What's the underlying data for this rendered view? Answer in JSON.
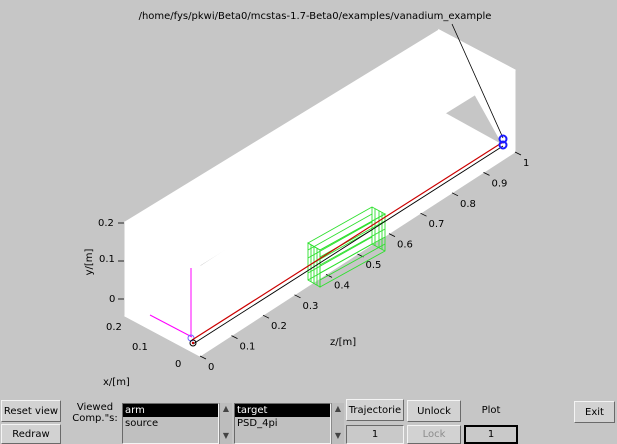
{
  "window": {
    "path_title": "/home/fys/pkwi/Beta0/mcstas-1.7-Beta0/examples/vanadium_example"
  },
  "axes": {
    "y_label": "y/[m]",
    "x_label": "x/[m]",
    "z_label": "z/[m]",
    "y_ticks": [
      "0.2",
      "0.1",
      "0"
    ],
    "x_ticks": [
      "0.2",
      "0.1",
      "0"
    ],
    "z_ticks": [
      "0",
      "0.1",
      "0.2",
      "0.3",
      "0.4",
      "0.5",
      "0.6",
      "0.7",
      "0.8",
      "0.9",
      "1"
    ]
  },
  "colors": {
    "box_face": "#ffffff",
    "background": "#c6c6c6",
    "sample": "#2ee02e",
    "beam": "#cc0000",
    "source": "#ff00ff",
    "detector": "#1a1aff"
  },
  "controls": {
    "reset_view": "Reset view",
    "redraw": "Redraw",
    "viewed_comps_label_line1": "Viewed",
    "viewed_comps_label_line2": "Comp.\"s:",
    "list1": [
      "arm",
      "source"
    ],
    "list2": [
      "target",
      "PSD_4pi"
    ],
    "trajectories_label": "Trajectorie",
    "trajectories_value": "1",
    "unlock": "Unlock",
    "lock": "Lock",
    "plot_label": "Plot",
    "plot_value": "1",
    "exit": "Exit"
  }
}
